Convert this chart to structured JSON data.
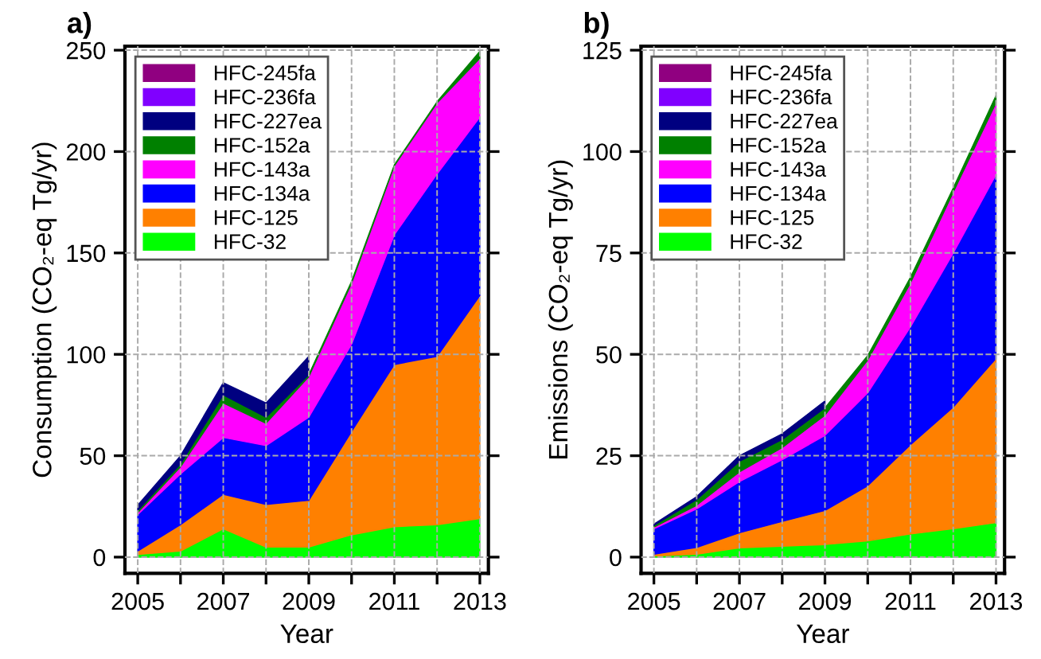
{
  "chart_data": [
    {
      "type": "area",
      "stacked": true,
      "title": "a)",
      "xlabel": "Year",
      "ylabel": "Consumption (CO₂-eq Tg/yr)",
      "x": [
        2005,
        2006,
        2007,
        2008,
        2009,
        2010,
        2011,
        2012,
        2013
      ],
      "series": [
        {
          "name": "HFC-32",
          "color": "#00ff00",
          "values": [
            1.3,
            3,
            14,
            5,
            5,
            11,
            15,
            16,
            19
          ]
        },
        {
          "name": "HFC-125",
          "color": "#ff8000",
          "values": [
            1.7,
            13,
            17,
            21,
            23,
            51,
            80,
            83,
            110
          ]
        },
        {
          "name": "HFC-134a",
          "color": "#0000ff",
          "values": [
            18,
            25,
            28,
            29,
            41,
            43,
            64,
            90,
            88
          ]
        },
        {
          "name": "HFC-143a",
          "color": "#ff00ff",
          "values": [
            1,
            3.5,
            17,
            11,
            20,
            30,
            34,
            35,
            29
          ]
        },
        {
          "name": "HFC-152a",
          "color": "#008000",
          "values": [
            1,
            1.5,
            4,
            3,
            1,
            1,
            0.4,
            0.6,
            3.5
          ]
        },
        {
          "name": "HFC-227ea",
          "color": "#000080",
          "values": [
            2.6,
            4,
            6,
            7,
            9,
            null,
            null,
            null,
            null
          ]
        },
        {
          "name": "HFC-236fa",
          "color": "#8000ff",
          "values": [
            null,
            null,
            null,
            null,
            null,
            null,
            null,
            null,
            null
          ]
        },
        {
          "name": "HFC-245fa",
          "color": "#900080",
          "values": [
            null,
            null,
            null,
            null,
            null,
            null,
            null,
            null,
            null
          ]
        }
      ],
      "xlim": [
        2004.7,
        2013.2
      ],
      "ylim": [
        -8,
        252
      ],
      "xticks": [
        2005,
        {
          "value": 2006,
          "label": null
        },
        2007,
        {
          "value": 2008,
          "label": null
        },
        2009,
        {
          "value": 2010,
          "label": null
        },
        2011,
        {
          "value": 2012,
          "label": null
        },
        2013
      ],
      "yticks": [
        0,
        50,
        100,
        150,
        200,
        250
      ],
      "grid": true,
      "legend": "top left"
    },
    {
      "type": "area",
      "stacked": true,
      "title": "b)",
      "xlabel": "Year",
      "ylabel": "Emissions (CO₂-eq Tg/yr)",
      "x": [
        2005,
        2006,
        2007,
        2008,
        2009,
        2010,
        2011,
        2012,
        2013
      ],
      "series": [
        {
          "name": "HFC-32",
          "color": "#00ff00",
          "values": [
            0.3,
            0.7,
            2.3,
            2.7,
            3.1,
            4,
            5.7,
            7,
            8.5
          ]
        },
        {
          "name": "HFC-125",
          "color": "#ff8000",
          "values": [
            0.4,
            1.7,
            3.7,
            6.1,
            8.4,
            13.6,
            22,
            30,
            40.5
          ]
        },
        {
          "name": "HFC-134a",
          "color": "#0000ff",
          "values": [
            6.3,
            9.5,
            12.6,
            15.2,
            18.5,
            22.9,
            29.1,
            38,
            45.3
          ]
        },
        {
          "name": "HFC-143a",
          "color": "#ff00ff",
          "values": [
            0.4,
            0.9,
            2.4,
            3,
            5,
            8.1,
            10.8,
            15,
            17.7
          ]
        },
        {
          "name": "HFC-152a",
          "color": "#008000",
          "values": [
            0.4,
            1.4,
            2.6,
            2,
            1.8,
            1.1,
            1.4,
            1,
            1.8
          ]
        },
        {
          "name": "HFC-227ea",
          "color": "#000080",
          "values": [
            0.3,
            0.7,
            1.4,
            1.4,
            1.7,
            null,
            null,
            null,
            null
          ]
        },
        {
          "name": "HFC-236fa",
          "color": "#8000ff",
          "values": [
            null,
            null,
            null,
            null,
            null,
            null,
            null,
            null,
            null
          ]
        },
        {
          "name": "HFC-245fa",
          "color": "#900080",
          "values": [
            null,
            null,
            null,
            null,
            null,
            null,
            null,
            null,
            null
          ]
        }
      ],
      "xlim": [
        2004.7,
        2013.2
      ],
      "ylim": [
        -4,
        126
      ],
      "xticks": [
        2005,
        {
          "value": 2006,
          "label": null
        },
        2007,
        {
          "value": 2008,
          "label": null
        },
        2009,
        {
          "value": 2010,
          "label": null
        },
        2011,
        {
          "value": 2012,
          "label": null
        },
        2013
      ],
      "yticks": [
        0,
        25,
        50,
        75,
        100,
        125
      ],
      "grid": true,
      "legend": "top left"
    }
  ]
}
